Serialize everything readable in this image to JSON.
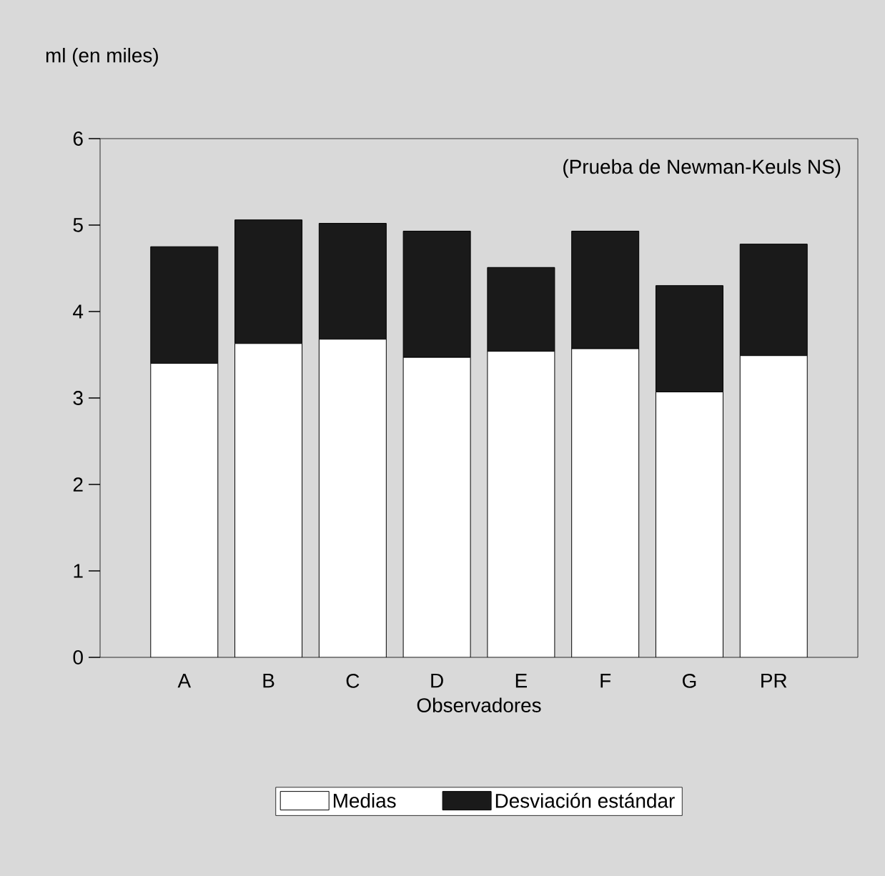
{
  "chart_data": {
    "type": "bar",
    "stacked": true,
    "xlabel": "Observadores",
    "ylabel": "ml (en miles)",
    "categories": [
      "A",
      "B",
      "C",
      "D",
      "E",
      "F",
      "G",
      "PR"
    ],
    "series": [
      {
        "name": "Medias",
        "color": "#ffffff",
        "values": [
          3.4,
          3.63,
          3.68,
          3.47,
          3.54,
          3.57,
          3.07,
          3.49
        ]
      },
      {
        "name": "Desviación estándar",
        "color": "#1a1a1a",
        "values": [
          1.35,
          1.43,
          1.34,
          1.46,
          0.97,
          1.36,
          1.23,
          1.29
        ]
      }
    ],
    "ylim": [
      0,
      6
    ],
    "yticks": [
      0,
      1,
      2,
      3,
      4,
      5,
      6
    ],
    "grid": false,
    "legend": "bottom",
    "annotations": [
      "(Prueba de Newman-Keuls NS)"
    ]
  }
}
